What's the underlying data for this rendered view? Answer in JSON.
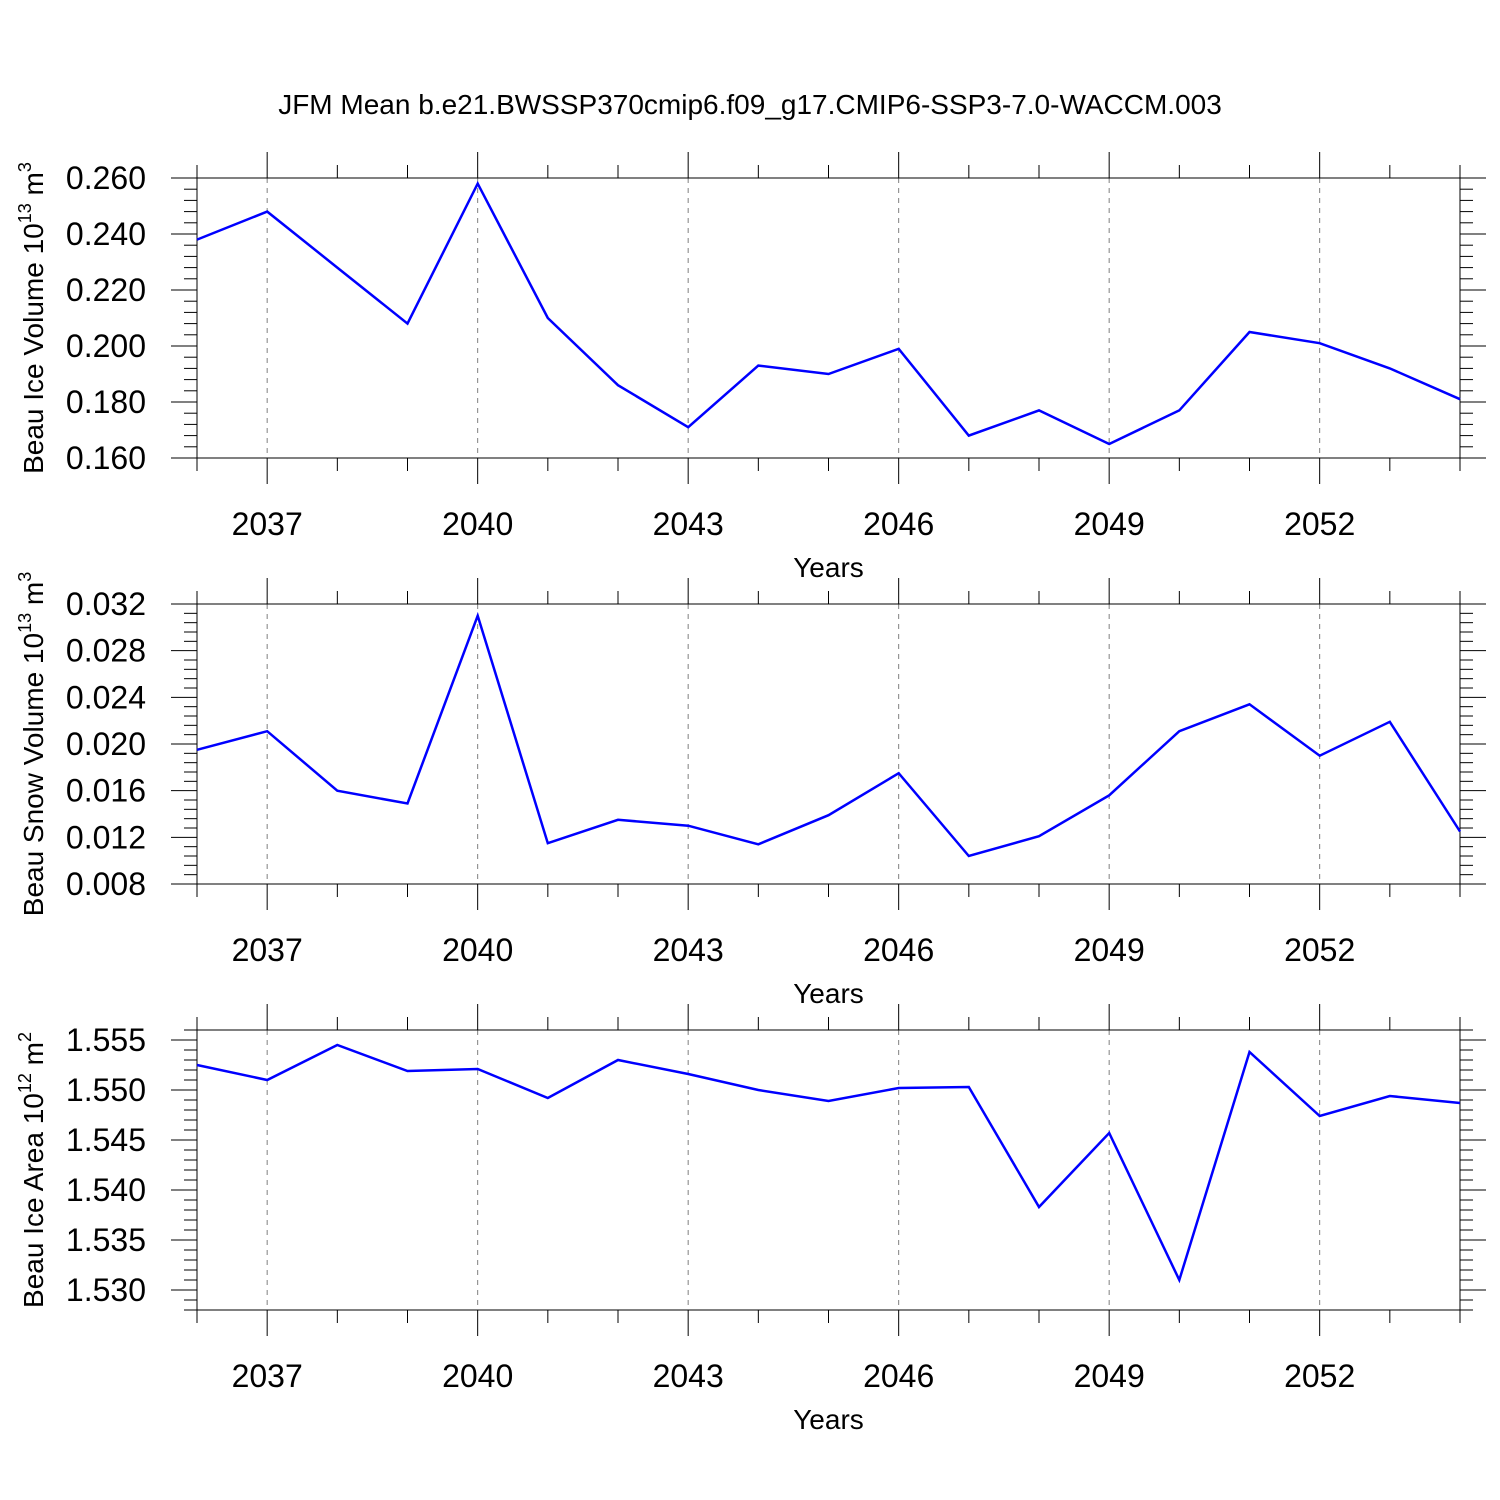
{
  "title": "JFM Mean b.e21.BWSSP370cmip6.f09_g17.CMIP6-SSP3-7.0-WACCM.003",
  "line_color": "#0000ff",
  "chart_data": [
    {
      "type": "line",
      "ylabel": "Beau Ice Volume 10",
      "ylabel_sup": "13",
      "ylabel_unit": " m",
      "ylabel_unit_sup": "3",
      "xlabel": "Years",
      "xlim": [
        2036,
        2054
      ],
      "ylim": [
        0.16,
        0.26
      ],
      "yticks": [
        0.16,
        0.18,
        0.2,
        0.22,
        0.24,
        0.26
      ],
      "ytick_labels": [
        "0.160",
        "0.180",
        "0.200",
        "0.220",
        "0.240",
        "0.260"
      ],
      "xticks": [
        2037,
        2040,
        2043,
        2046,
        2049,
        2052
      ],
      "xtick_labels": [
        "2037",
        "2040",
        "2043",
        "2046",
        "2049",
        "2052"
      ],
      "x": [
        2036,
        2037,
        2038,
        2039,
        2040,
        2041,
        2042,
        2043,
        2044,
        2045,
        2046,
        2047,
        2048,
        2049,
        2050,
        2051,
        2052,
        2053,
        2054
      ],
      "values": [
        0.238,
        0.248,
        0.228,
        0.208,
        0.258,
        0.21,
        0.186,
        0.171,
        0.193,
        0.19,
        0.199,
        0.168,
        0.177,
        0.165,
        0.177,
        0.205,
        0.201,
        0.192,
        0.181
      ]
    },
    {
      "type": "line",
      "ylabel": "Beau Snow Volume 10",
      "ylabel_sup": "13",
      "ylabel_unit": " m",
      "ylabel_unit_sup": "3",
      "xlabel": "Years",
      "xlim": [
        2036,
        2054
      ],
      "ylim": [
        0.008,
        0.032
      ],
      "yticks": [
        0.008,
        0.012,
        0.016,
        0.02,
        0.024,
        0.028,
        0.032
      ],
      "ytick_labels": [
        "0.008",
        "0.012",
        "0.016",
        "0.020",
        "0.024",
        "0.028",
        "0.032"
      ],
      "xticks": [
        2037,
        2040,
        2043,
        2046,
        2049,
        2052
      ],
      "xtick_labels": [
        "2037",
        "2040",
        "2043",
        "2046",
        "2049",
        "2052"
      ],
      "x": [
        2036,
        2037,
        2038,
        2039,
        2040,
        2041,
        2042,
        2043,
        2044,
        2045,
        2046,
        2047,
        2048,
        2049,
        2050,
        2051,
        2052,
        2053,
        2054
      ],
      "values": [
        0.0195,
        0.0211,
        0.016,
        0.0149,
        0.031,
        0.0115,
        0.0135,
        0.013,
        0.0114,
        0.0139,
        0.0175,
        0.0104,
        0.0121,
        0.0156,
        0.0211,
        0.0234,
        0.019,
        0.0219,
        0.0125
      ]
    },
    {
      "type": "line",
      "ylabel": "Beau Ice Area 10",
      "ylabel_sup": "12",
      "ylabel_unit": " m",
      "ylabel_unit_sup": "2",
      "xlabel": "Years",
      "xlim": [
        2036,
        2054
      ],
      "ylim": [
        1.528,
        1.556
      ],
      "yticks": [
        1.53,
        1.535,
        1.54,
        1.545,
        1.55,
        1.555
      ],
      "ytick_labels": [
        "1.530",
        "1.535",
        "1.540",
        "1.545",
        "1.550",
        "1.555"
      ],
      "xticks": [
        2037,
        2040,
        2043,
        2046,
        2049,
        2052
      ],
      "xtick_labels": [
        "2037",
        "2040",
        "2043",
        "2046",
        "2049",
        "2052"
      ],
      "x": [
        2036,
        2037,
        2038,
        2039,
        2040,
        2041,
        2042,
        2043,
        2044,
        2045,
        2046,
        2047,
        2048,
        2049,
        2050,
        2051,
        2052,
        2053,
        2054
      ],
      "values": [
        1.5525,
        1.551,
        1.5545,
        1.5519,
        1.5521,
        1.5492,
        1.553,
        1.5516,
        1.55,
        1.5489,
        1.5502,
        1.5503,
        1.5383,
        1.5457,
        1.531,
        1.5538,
        1.5474,
        1.5494,
        1.5487
      ]
    }
  ]
}
